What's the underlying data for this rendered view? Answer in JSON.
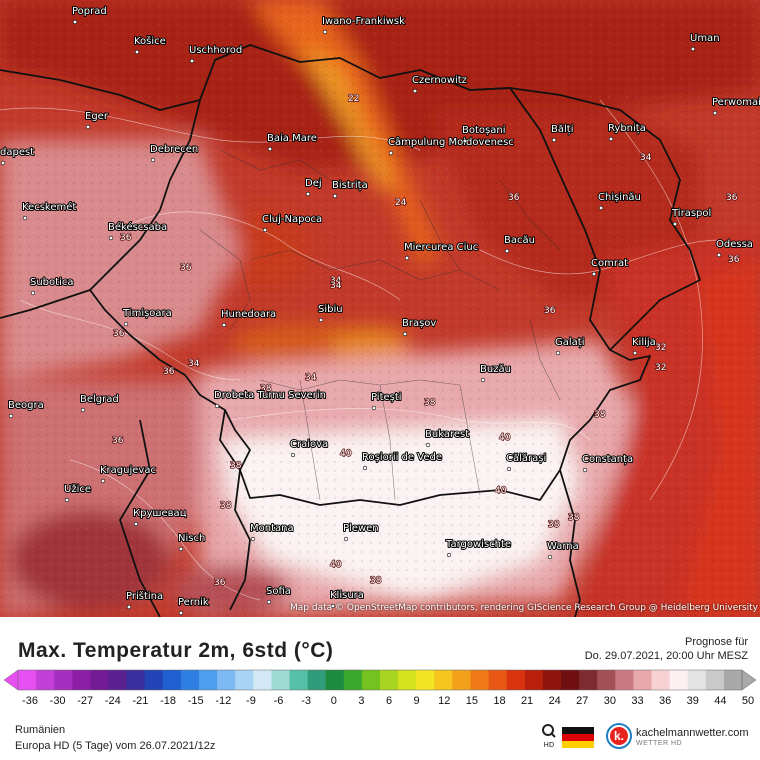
{
  "map": {
    "attribution": "Map data © OpenStreetMap contributors, rendering GIScience Research Group @ Heidelberg University",
    "cities": [
      "Poprad",
      "Iwano-Frankiwsk",
      "Uman",
      "Košice",
      "Uschhorod",
      "Czernowitz",
      "Perwomaisk",
      "Eger",
      "Baia Mare",
      "Câmpulung Moldovenesc",
      "Botoșani",
      "Bălți",
      "Rybnița",
      "dapest",
      "Debrecen",
      "Dej",
      "Bistrița",
      "Chișinău",
      "Tiraspol",
      "Kecskemét",
      "Cluj-Napoca",
      "Békéscsaba",
      "Bacău",
      "Odessa",
      "Miercurea Ciuc",
      "Subotica",
      "Comrat",
      "Sibiu",
      "Timișoara",
      "Hunedoara",
      "Brașov",
      "Galați",
      "Kilija",
      "Buzău",
      "Drobeta Turnu Severin",
      "Pitești",
      "Belgrad",
      "Beogra",
      "Bukarest",
      "Craiova",
      "Roșiorii de Vede",
      "Călărași",
      "Constanța",
      "Kragujevac",
      "Užice",
      "Крушевац",
      "Nisch",
      "Montana",
      "Plewen",
      "Targowischte",
      "Warna",
      "Sofia",
      "Pernik",
      "Priština",
      "Klisura"
    ],
    "isotherm_labels": [
      "36",
      "36",
      "36",
      "34",
      "34",
      "34",
      "36",
      "36",
      "34",
      "36",
      "36",
      "38",
      "36",
      "36",
      "38",
      "38",
      "40",
      "40",
      "38",
      "40",
      "38",
      "36",
      "38",
      "40",
      "38",
      "38",
      "32",
      "32",
      "24",
      "22",
      "34"
    ]
  },
  "footer": {
    "title": "Max. Temperatur 2m, 6std (°C)",
    "forecast_label": "Prognose für",
    "forecast_time": "Do. 29.07.2021, 20:00 Uhr MESZ",
    "region": "Rumänien",
    "model": "Europa HD (5 Tage) vom  26.07.2021/12z",
    "brand": "kachelmannwetter.com",
    "brand_sub": "WETTER HD"
  },
  "legend": {
    "ticks": [
      "-36",
      "-30",
      "-27",
      "-24",
      "-21",
      "-18",
      "-15",
      "-12",
      "-9",
      "-6",
      "-3",
      "0",
      "3",
      "6",
      "9",
      "12",
      "15",
      "18",
      "21",
      "24",
      "27",
      "30",
      "33",
      "36",
      "39",
      "44",
      "50"
    ],
    "colors": [
      "#e64ff2",
      "#c23fd8",
      "#a52fbf",
      "#8c1fa6",
      "#731b94",
      "#5a2090",
      "#3a2fa0",
      "#2145b7",
      "#1f5fd0",
      "#2f7fe3",
      "#4e9df0",
      "#7dbaf3",
      "#a9d3f5",
      "#d2e8f7",
      "#9edcd3",
      "#57c0a8",
      "#2f9c7a",
      "#1d8a3f",
      "#3aa82c",
      "#74c21f",
      "#a9d420",
      "#d6e21e",
      "#f2e623",
      "#f5c51d",
      "#f3a01a",
      "#ef7a17",
      "#e85613",
      "#d9340f",
      "#b81f0d",
      "#8e140e",
      "#6f0f12",
      "#7d2b30",
      "#a34f56",
      "#c97a80",
      "#e7a8ac",
      "#f6d2d4",
      "#fbf1f1",
      "#e3e3e3",
      "#c9c9c9",
      "#a9a9a9"
    ]
  }
}
